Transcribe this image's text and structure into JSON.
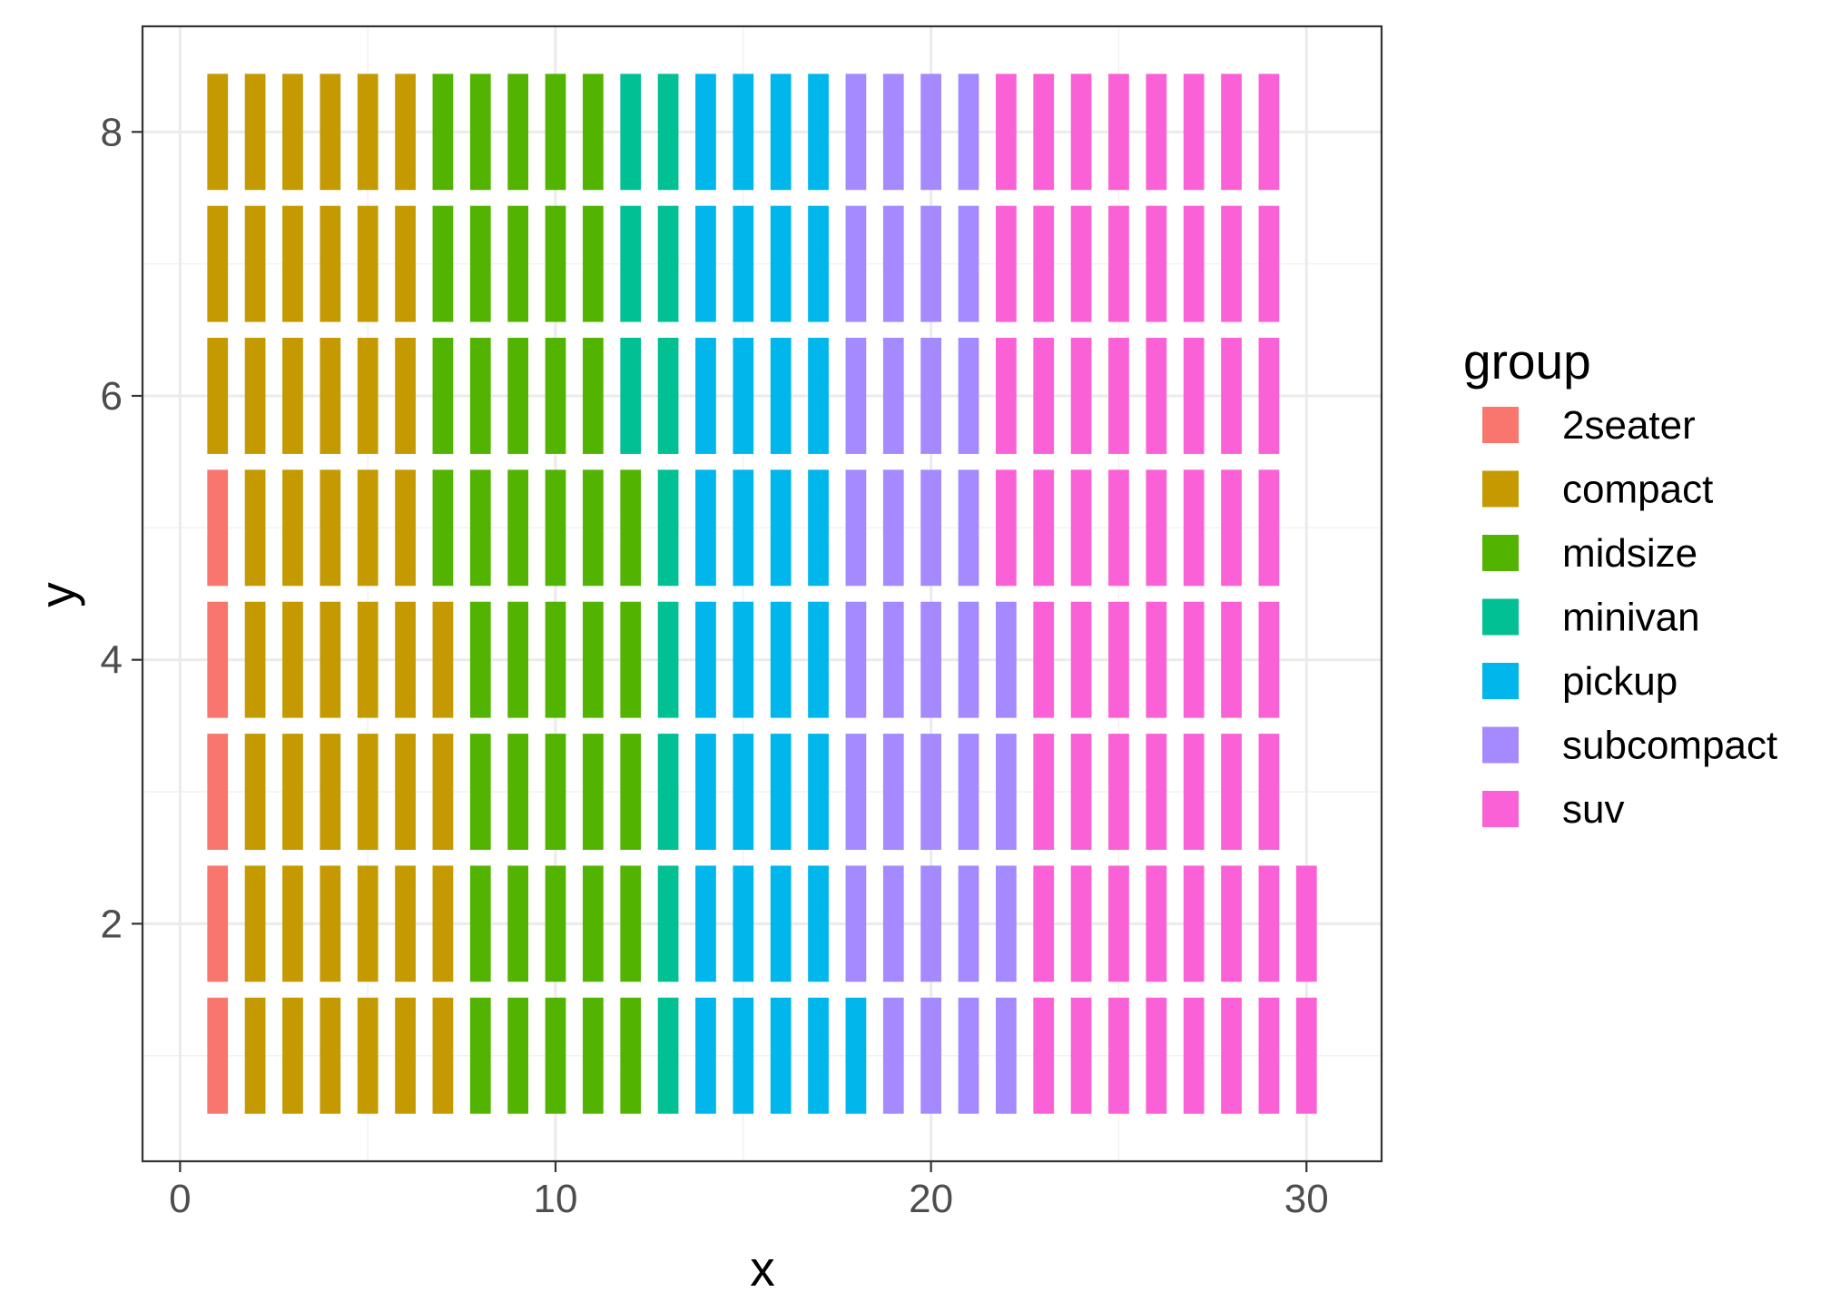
{
  "chart_data": {
    "type": "heatmap",
    "title": "",
    "xlabel": "x",
    "ylabel": "y",
    "xlim": [
      -1,
      32
    ],
    "ylim": [
      0.2,
      8.8
    ],
    "x_ticks": [
      "0",
      "10",
      "20",
      "30"
    ],
    "y_ticks": [
      "2",
      "4",
      "6",
      "8"
    ],
    "grid": true,
    "legend": {
      "title": "group",
      "placement": "right"
    },
    "groups": [
      {
        "name": "2seater",
        "color": "#F8766D",
        "count": 5
      },
      {
        "name": "compact",
        "color": "#C49A00",
        "count": 47
      },
      {
        "name": "midsize",
        "color": "#53B400",
        "count": 41
      },
      {
        "name": "minivan",
        "color": "#00C094",
        "count": 11
      },
      {
        "name": "pickup",
        "color": "#00B6EB",
        "count": 33
      },
      {
        "name": "subcompact",
        "color": "#A58AFF",
        "count": 35
      },
      {
        "name": "suv",
        "color": "#FB61D7",
        "count": 62
      }
    ],
    "tile_width": 0.55,
    "tile_height": 0.88,
    "columns": [
      {
        "x": 1,
        "groups": [
          "2seater",
          "2seater",
          "2seater",
          "2seater",
          "2seater",
          "compact",
          "compact",
          "compact"
        ]
      },
      {
        "x": 2,
        "groups": [
          "compact",
          "compact",
          "compact",
          "compact",
          "compact",
          "compact",
          "compact",
          "compact"
        ]
      },
      {
        "x": 3,
        "groups": [
          "compact",
          "compact",
          "compact",
          "compact",
          "compact",
          "compact",
          "compact",
          "compact"
        ]
      },
      {
        "x": 4,
        "groups": [
          "compact",
          "compact",
          "compact",
          "compact",
          "compact",
          "compact",
          "compact",
          "compact"
        ]
      },
      {
        "x": 5,
        "groups": [
          "compact",
          "compact",
          "compact",
          "compact",
          "compact",
          "compact",
          "compact",
          "compact"
        ]
      },
      {
        "x": 6,
        "groups": [
          "compact",
          "compact",
          "compact",
          "compact",
          "compact",
          "compact",
          "compact",
          "compact"
        ]
      },
      {
        "x": 7,
        "groups": [
          "compact",
          "compact",
          "compact",
          "compact",
          "midsize",
          "midsize",
          "midsize",
          "midsize"
        ]
      },
      {
        "x": 8,
        "groups": [
          "midsize",
          "midsize",
          "midsize",
          "midsize",
          "midsize",
          "midsize",
          "midsize",
          "midsize"
        ]
      },
      {
        "x": 9,
        "groups": [
          "midsize",
          "midsize",
          "midsize",
          "midsize",
          "midsize",
          "midsize",
          "midsize",
          "midsize"
        ]
      },
      {
        "x": 10,
        "groups": [
          "midsize",
          "midsize",
          "midsize",
          "midsize",
          "midsize",
          "midsize",
          "midsize",
          "midsize"
        ]
      },
      {
        "x": 11,
        "groups": [
          "midsize",
          "midsize",
          "midsize",
          "midsize",
          "midsize",
          "midsize",
          "midsize",
          "midsize"
        ]
      },
      {
        "x": 12,
        "groups": [
          "midsize",
          "midsize",
          "midsize",
          "midsize",
          "midsize",
          "minivan",
          "minivan",
          "minivan"
        ]
      },
      {
        "x": 13,
        "groups": [
          "minivan",
          "minivan",
          "minivan",
          "minivan",
          "minivan",
          "minivan",
          "minivan",
          "minivan"
        ]
      },
      {
        "x": 14,
        "groups": [
          "pickup",
          "pickup",
          "pickup",
          "pickup",
          "pickup",
          "pickup",
          "pickup",
          "pickup"
        ]
      },
      {
        "x": 15,
        "groups": [
          "pickup",
          "pickup",
          "pickup",
          "pickup",
          "pickup",
          "pickup",
          "pickup",
          "pickup"
        ]
      },
      {
        "x": 16,
        "groups": [
          "pickup",
          "pickup",
          "pickup",
          "pickup",
          "pickup",
          "pickup",
          "pickup",
          "pickup"
        ]
      },
      {
        "x": 17,
        "groups": [
          "pickup",
          "pickup",
          "pickup",
          "pickup",
          "pickup",
          "pickup",
          "pickup",
          "pickup"
        ]
      },
      {
        "x": 18,
        "groups": [
          "pickup",
          "subcompact",
          "subcompact",
          "subcompact",
          "subcompact",
          "subcompact",
          "subcompact",
          "subcompact"
        ]
      },
      {
        "x": 19,
        "groups": [
          "subcompact",
          "subcompact",
          "subcompact",
          "subcompact",
          "subcompact",
          "subcompact",
          "subcompact",
          "subcompact"
        ]
      },
      {
        "x": 20,
        "groups": [
          "subcompact",
          "subcompact",
          "subcompact",
          "subcompact",
          "subcompact",
          "subcompact",
          "subcompact",
          "subcompact"
        ]
      },
      {
        "x": 21,
        "groups": [
          "subcompact",
          "subcompact",
          "subcompact",
          "subcompact",
          "subcompact",
          "subcompact",
          "subcompact",
          "subcompact"
        ]
      },
      {
        "x": 22,
        "groups": [
          "subcompact",
          "subcompact",
          "subcompact",
          "subcompact",
          "suv",
          "suv",
          "suv",
          "suv"
        ]
      },
      {
        "x": 23,
        "groups": [
          "suv",
          "suv",
          "suv",
          "suv",
          "suv",
          "suv",
          "suv",
          "suv"
        ]
      },
      {
        "x": 24,
        "groups": [
          "suv",
          "suv",
          "suv",
          "suv",
          "suv",
          "suv",
          "suv",
          "suv"
        ]
      },
      {
        "x": 25,
        "groups": [
          "suv",
          "suv",
          "suv",
          "suv",
          "suv",
          "suv",
          "suv",
          "suv"
        ]
      },
      {
        "x": 26,
        "groups": [
          "suv",
          "suv",
          "suv",
          "suv",
          "suv",
          "suv",
          "suv",
          "suv"
        ]
      },
      {
        "x": 27,
        "groups": [
          "suv",
          "suv",
          "suv",
          "suv",
          "suv",
          "suv",
          "suv",
          "suv"
        ]
      },
      {
        "x": 28,
        "groups": [
          "suv",
          "suv",
          "suv",
          "suv",
          "suv",
          "suv",
          "suv",
          "suv"
        ]
      },
      {
        "x": 29,
        "groups": [
          "suv",
          "suv",
          "suv",
          "suv",
          "suv",
          "suv",
          "suv",
          "suv"
        ]
      },
      {
        "x": 30,
        "groups": [
          "suv",
          "suv"
        ]
      }
    ]
  }
}
